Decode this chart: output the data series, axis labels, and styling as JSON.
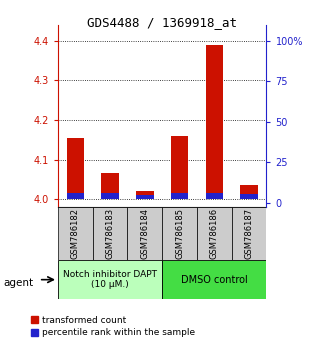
{
  "title": "GDS4488 / 1369918_at",
  "samples": [
    "GSM786182",
    "GSM786183",
    "GSM786184",
    "GSM786185",
    "GSM786186",
    "GSM786187"
  ],
  "red_tops": [
    4.155,
    4.065,
    4.02,
    4.16,
    4.39,
    4.035
  ],
  "blue_tops": [
    4.015,
    4.015,
    4.01,
    4.015,
    4.015,
    4.012
  ],
  "bar_bottom": 4.0,
  "ylim_left": [
    3.98,
    4.44
  ],
  "ylim_right": [
    -2.75,
    110
  ],
  "yticks_left": [
    4.0,
    4.1,
    4.2,
    4.3,
    4.4
  ],
  "yticks_right": [
    0,
    25,
    50,
    75,
    100
  ],
  "ytick_right_labels": [
    "0",
    "25",
    "50",
    "75",
    "100%"
  ],
  "group1_label": "Notch inhibitor DAPT\n(10 μM.)",
  "group2_label": "DMSO control",
  "agent_label": "agent",
  "legend1_label": "transformed count",
  "legend2_label": "percentile rank within the sample",
  "red_color": "#cc1100",
  "blue_color": "#2222cc",
  "group1_bg": "#bbffbb",
  "group2_bg": "#44dd44",
  "sample_box_bg": "#cccccc",
  "bar_width": 0.5,
  "title_fontsize": 9,
  "tick_fontsize": 7,
  "legend_fontsize": 6.5
}
